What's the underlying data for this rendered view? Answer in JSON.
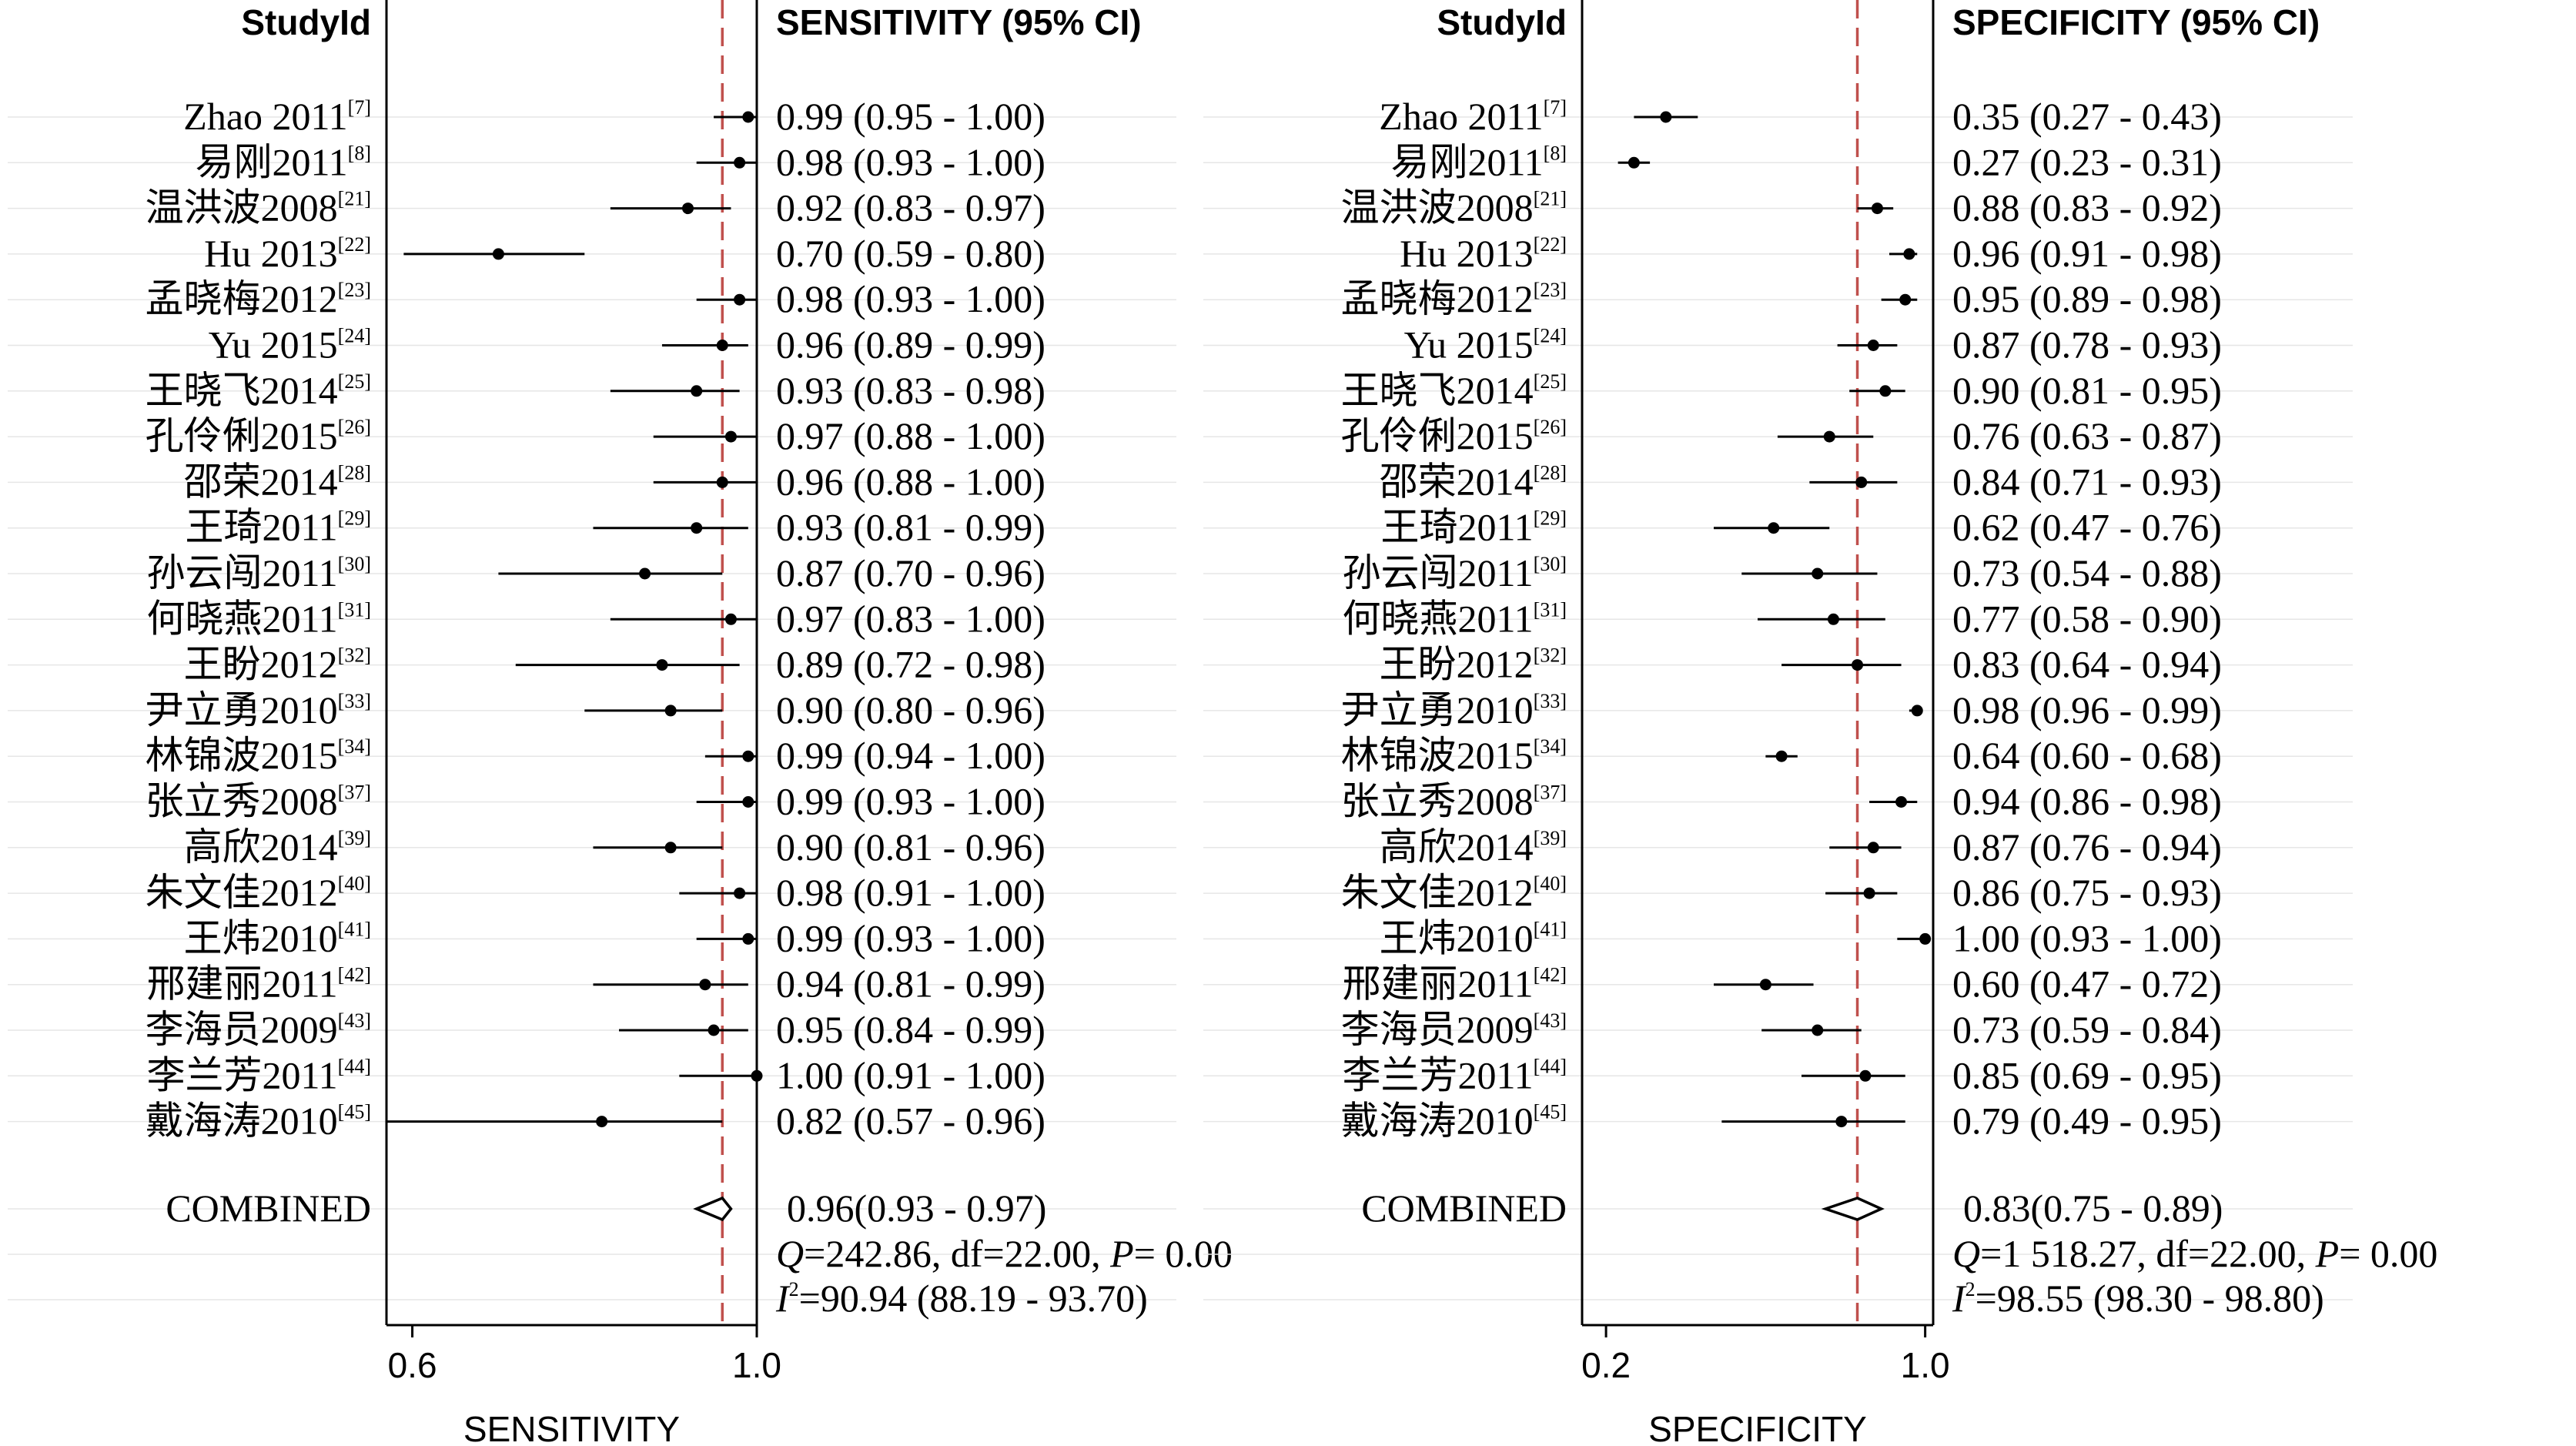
{
  "chart_data": [
    {
      "type": "forest",
      "metric": "SENSITIVITY",
      "header_study": "StudyId",
      "header_value": "SENSITIVITY (95% CI)",
      "xlabel": "SENSITIVITY",
      "ticks": [
        "0.6",
        "1.0"
      ],
      "xlim": [
        0.57,
        1.0
      ],
      "ref_line": 0.96,
      "ref_color": "#c0504d",
      "studies": [
        {
          "name": "Zhao 2011",
          "ref": "[7]",
          "est": 0.99,
          "lo": 0.95,
          "hi": 1.0,
          "text": "0.99 (0.95 - 1.00)"
        },
        {
          "name": "易刚2011",
          "ref": "[8]",
          "est": 0.98,
          "lo": 0.93,
          "hi": 1.0,
          "text": "0.98 (0.93 - 1.00)"
        },
        {
          "name": "温洪波2008",
          "ref": "[21]",
          "est": 0.92,
          "lo": 0.83,
          "hi": 0.97,
          "text": "0.92 (0.83 - 0.97)"
        },
        {
          "name": "Hu 2013",
          "ref": "[22]",
          "est": 0.7,
          "lo": 0.59,
          "hi": 0.8,
          "text": "0.70 (0.59 - 0.80)"
        },
        {
          "name": "孟晓梅2012",
          "ref": "[23]",
          "est": 0.98,
          "lo": 0.93,
          "hi": 1.0,
          "text": "0.98 (0.93 - 1.00)"
        },
        {
          "name": "Yu 2015",
          "ref": "[24]",
          "est": 0.96,
          "lo": 0.89,
          "hi": 0.99,
          "text": "0.96 (0.89 - 0.99)"
        },
        {
          "name": "王晓飞2014",
          "ref": "[25]",
          "est": 0.93,
          "lo": 0.83,
          "hi": 0.98,
          "text": "0.93 (0.83 - 0.98)"
        },
        {
          "name": "孔伶俐2015",
          "ref": "[26]",
          "est": 0.97,
          "lo": 0.88,
          "hi": 1.0,
          "text": "0.97 (0.88 - 1.00)"
        },
        {
          "name": "邵荣2014",
          "ref": "[28]",
          "est": 0.96,
          "lo": 0.88,
          "hi": 1.0,
          "text": "0.96 (0.88 - 1.00)"
        },
        {
          "name": "王琦2011",
          "ref": "[29]",
          "est": 0.93,
          "lo": 0.81,
          "hi": 0.99,
          "text": "0.93 (0.81 - 0.99)"
        },
        {
          "name": "孙云闯2011",
          "ref": "[30]",
          "est": 0.87,
          "lo": 0.7,
          "hi": 0.96,
          "text": "0.87 (0.70 - 0.96)"
        },
        {
          "name": "何晓燕2011",
          "ref": "[31]",
          "est": 0.97,
          "lo": 0.83,
          "hi": 1.0,
          "text": "0.97 (0.83 - 1.00)"
        },
        {
          "name": "王盼2012",
          "ref": "[32]",
          "est": 0.89,
          "lo": 0.72,
          "hi": 0.98,
          "text": "0.89 (0.72 - 0.98)"
        },
        {
          "name": "尹立勇2010",
          "ref": "[33]",
          "est": 0.9,
          "lo": 0.8,
          "hi": 0.96,
          "text": "0.90 (0.80 - 0.96)"
        },
        {
          "name": "林锦波2015",
          "ref": "[34]",
          "est": 0.99,
          "lo": 0.94,
          "hi": 1.0,
          "text": "0.99 (0.94 - 1.00)"
        },
        {
          "name": "张立秀2008",
          "ref": "[37]",
          "est": 0.99,
          "lo": 0.93,
          "hi": 1.0,
          "text": "0.99 (0.93 - 1.00)"
        },
        {
          "name": "高欣2014",
          "ref": "[39]",
          "est": 0.9,
          "lo": 0.81,
          "hi": 0.96,
          "text": "0.90 (0.81 - 0.96)"
        },
        {
          "name": "朱文佳2012",
          "ref": "[40]",
          "est": 0.98,
          "lo": 0.91,
          "hi": 1.0,
          "text": "0.98 (0.91 - 1.00)"
        },
        {
          "name": "王炜2010",
          "ref": "[41]",
          "est": 0.99,
          "lo": 0.93,
          "hi": 1.0,
          "text": "0.99 (0.93 - 1.00)"
        },
        {
          "name": "邢建丽2011",
          "ref": "[42]",
          "est": 0.94,
          "lo": 0.81,
          "hi": 0.99,
          "text": "0.94 (0.81 - 0.99)"
        },
        {
          "name": "李海员2009",
          "ref": "[43]",
          "est": 0.95,
          "lo": 0.84,
          "hi": 0.99,
          "text": "0.95 (0.84 - 0.99)"
        },
        {
          "name": "李兰芳2011",
          "ref": "[44]",
          "est": 1.0,
          "lo": 0.91,
          "hi": 1.0,
          "text": "1.00 (0.91 - 1.00)"
        },
        {
          "name": "戴海涛2010",
          "ref": "[45]",
          "est": 0.82,
          "lo": 0.57,
          "hi": 0.96,
          "text": "0.82 (0.57 - 0.96)"
        }
      ],
      "combined": {
        "label": "COMBINED",
        "est": 0.96,
        "lo": 0.93,
        "hi": 0.97,
        "text": "0.96(0.93 - 0.97)",
        "q": "242.86",
        "df": "22.00",
        "p": "0.00",
        "i2": "90.94 (88.19 - 93.70)"
      }
    },
    {
      "type": "forest",
      "metric": "SPECIFICITY",
      "header_study": "StudyId",
      "header_value": "SPECIFICITY (95% CI)",
      "xlabel": "SPECIFICITY",
      "ticks": [
        "0.2",
        "1.0"
      ],
      "xlim": [
        0.14,
        1.02
      ],
      "ref_line": 0.83,
      "ref_color": "#c0504d",
      "studies": [
        {
          "name": "Zhao 2011",
          "ref": "[7]",
          "est": 0.35,
          "lo": 0.27,
          "hi": 0.43,
          "text": "0.35 (0.27 - 0.43)"
        },
        {
          "name": "易刚2011",
          "ref": "[8]",
          "est": 0.27,
          "lo": 0.23,
          "hi": 0.31,
          "text": "0.27 (0.23 - 0.31)"
        },
        {
          "name": "温洪波2008",
          "ref": "[21]",
          "est": 0.88,
          "lo": 0.83,
          "hi": 0.92,
          "text": "0.88 (0.83 - 0.92)"
        },
        {
          "name": "Hu 2013",
          "ref": "[22]",
          "est": 0.96,
          "lo": 0.91,
          "hi": 0.98,
          "text": "0.96 (0.91 - 0.98)"
        },
        {
          "name": "孟晓梅2012",
          "ref": "[23]",
          "est": 0.95,
          "lo": 0.89,
          "hi": 0.98,
          "text": "0.95 (0.89 - 0.98)"
        },
        {
          "name": "Yu 2015",
          "ref": "[24]",
          "est": 0.87,
          "lo": 0.78,
          "hi": 0.93,
          "text": "0.87 (0.78 - 0.93)"
        },
        {
          "name": "王晓飞2014",
          "ref": "[25]",
          "est": 0.9,
          "lo": 0.81,
          "hi": 0.95,
          "text": "0.90 (0.81 - 0.95)"
        },
        {
          "name": "孔伶俐2015",
          "ref": "[26]",
          "est": 0.76,
          "lo": 0.63,
          "hi": 0.87,
          "text": "0.76 (0.63 - 0.87)"
        },
        {
          "name": "邵荣2014",
          "ref": "[28]",
          "est": 0.84,
          "lo": 0.71,
          "hi": 0.93,
          "text": "0.84 (0.71 - 0.93)"
        },
        {
          "name": "王琦2011",
          "ref": "[29]",
          "est": 0.62,
          "lo": 0.47,
          "hi": 0.76,
          "text": "0.62 (0.47 - 0.76)"
        },
        {
          "name": "孙云闯2011",
          "ref": "[30]",
          "est": 0.73,
          "lo": 0.54,
          "hi": 0.88,
          "text": "0.73 (0.54 - 0.88)"
        },
        {
          "name": "何晓燕2011",
          "ref": "[31]",
          "est": 0.77,
          "lo": 0.58,
          "hi": 0.9,
          "text": "0.77 (0.58 - 0.90)"
        },
        {
          "name": "王盼2012",
          "ref": "[32]",
          "est": 0.83,
          "lo": 0.64,
          "hi": 0.94,
          "text": "0.83 (0.64 - 0.94)"
        },
        {
          "name": "尹立勇2010",
          "ref": "[33]",
          "est": 0.98,
          "lo": 0.96,
          "hi": 0.99,
          "text": "0.98 (0.96 - 0.99)"
        },
        {
          "name": "林锦波2015",
          "ref": "[34]",
          "est": 0.64,
          "lo": 0.6,
          "hi": 0.68,
          "text": "0.64 (0.60 - 0.68)"
        },
        {
          "name": "张立秀2008",
          "ref": "[37]",
          "est": 0.94,
          "lo": 0.86,
          "hi": 0.98,
          "text": "0.94 (0.86 - 0.98)"
        },
        {
          "name": "高欣2014",
          "ref": "[39]",
          "est": 0.87,
          "lo": 0.76,
          "hi": 0.94,
          "text": "0.87 (0.76 - 0.94)"
        },
        {
          "name": "朱文佳2012",
          "ref": "[40]",
          "est": 0.86,
          "lo": 0.75,
          "hi": 0.93,
          "text": "0.86 (0.75 - 0.93)"
        },
        {
          "name": "王炜2010",
          "ref": "[41]",
          "est": 1.0,
          "lo": 0.93,
          "hi": 1.0,
          "text": "1.00 (0.93 - 1.00)"
        },
        {
          "name": "邢建丽2011",
          "ref": "[42]",
          "est": 0.6,
          "lo": 0.47,
          "hi": 0.72,
          "text": "0.60 (0.47 - 0.72)"
        },
        {
          "name": "李海员2009",
          "ref": "[43]",
          "est": 0.73,
          "lo": 0.59,
          "hi": 0.84,
          "text": "0.73 (0.59 - 0.84)"
        },
        {
          "name": "李兰芳2011",
          "ref": "[44]",
          "est": 0.85,
          "lo": 0.69,
          "hi": 0.95,
          "text": "0.85 (0.69 - 0.95)"
        },
        {
          "name": "戴海涛2010",
          "ref": "[45]",
          "est": 0.79,
          "lo": 0.49,
          "hi": 0.95,
          "text": "0.79 (0.49 - 0.95)"
        }
      ],
      "combined": {
        "label": "COMBINED",
        "est": 0.83,
        "lo": 0.75,
        "hi": 0.89,
        "text": "0.83(0.75 - 0.89)",
        "q": "1 518.27",
        "df": "22.00",
        "p": "0.00",
        "i2": "98.55 (98.30 - 98.80)"
      }
    }
  ]
}
